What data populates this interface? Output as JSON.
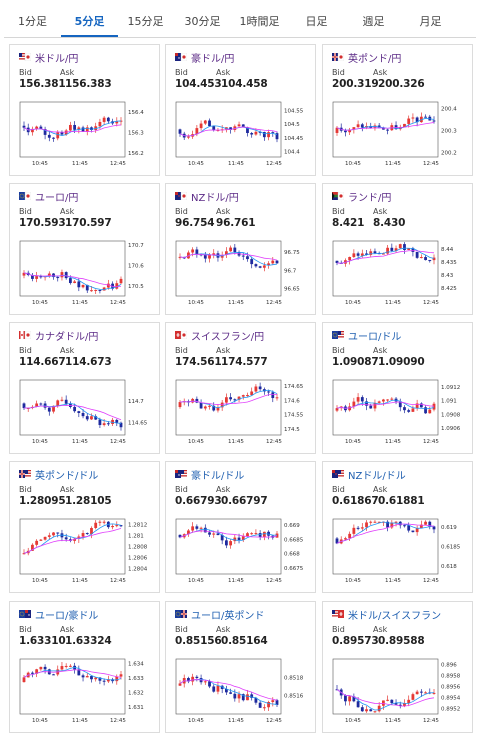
{
  "tabs": [
    {
      "label": "1分足",
      "active": false
    },
    {
      "label": "5分足",
      "active": true
    },
    {
      "label": "15分足",
      "active": false
    },
    {
      "label": "30分足",
      "active": false
    },
    {
      "label": "1時間足",
      "active": false
    },
    {
      "label": "日足",
      "active": false
    },
    {
      "label": "週足",
      "active": false
    },
    {
      "label": "月足",
      "active": false
    }
  ],
  "bid_label": "Bid",
  "ask_label": "Ask",
  "x_ticks": [
    "10:45",
    "11:45",
    "12:45"
  ],
  "colors": {
    "up": "#e53935",
    "down": "#1e2a9e",
    "ma_fast": "#2196f3",
    "ma_slow": "#e040fb"
  },
  "cards": [
    {
      "name": "米ドル/円",
      "flag": "us-jp",
      "bid": "156.381",
      "ask": "156.383",
      "yticks": [
        "156.4",
        "156.3",
        "156.2"
      ],
      "ylim": [
        156.18,
        156.45
      ],
      "seed": 1
    },
    {
      "name": "豪ドル/円",
      "flag": "au-jp",
      "bid": "104.453",
      "ask": "104.458",
      "yticks": [
        "104.55",
        "104.5",
        "104.45",
        "104.4"
      ],
      "ylim": [
        104.38,
        104.58
      ],
      "seed": 2
    },
    {
      "name": "英ポンド/円",
      "flag": "gb-jp",
      "bid": "200.319",
      "ask": "200.326",
      "yticks": [
        "200.4",
        "200.3",
        "200.2"
      ],
      "ylim": [
        200.18,
        200.43
      ],
      "seed": 3
    },
    {
      "name": "ユーロ/円",
      "flag": "eu-jp",
      "bid": "170.593",
      "ask": "170.597",
      "yticks": [
        "170.7",
        "170.6",
        "170.5"
      ],
      "ylim": [
        170.45,
        170.72
      ],
      "seed": 4
    },
    {
      "name": "NZドル/円",
      "flag": "nz-jp",
      "bid": "96.754",
      "ask": "96.761",
      "yticks": [
        "96.75",
        "96.7",
        "96.65"
      ],
      "ylim": [
        96.63,
        96.78
      ],
      "seed": 5
    },
    {
      "name": "ランド/円",
      "flag": "za-jp",
      "bid": "8.421",
      "ask": "8.430",
      "yticks": [
        "8.44",
        "8.435",
        "8.43",
        "8.425"
      ],
      "ylim": [
        8.422,
        8.443
      ],
      "seed": 6
    },
    {
      "name": "カナダドル/円",
      "flag": "ca-jp",
      "bid": "114.667",
      "ask": "114.673",
      "yticks": [
        "114.7",
        "114.65"
      ],
      "ylim": [
        114.62,
        114.75
      ],
      "seed": 7
    },
    {
      "name": "スイスフラン/円",
      "flag": "ch-jp",
      "bid": "174.561",
      "ask": "174.577",
      "yticks": [
        "174.65",
        "174.6",
        "174.55",
        "174.5"
      ],
      "ylim": [
        174.48,
        174.67
      ],
      "seed": 8
    },
    {
      "name": "ユーロ/ドル",
      "flag": "eu-us",
      "bid": "1.09087",
      "ask": "1.09090",
      "yticks": [
        "1.0912",
        "1.091",
        "1.0908",
        "1.0906"
      ],
      "ylim": [
        1.0905,
        1.0913
      ],
      "seed": 9
    },
    {
      "name": "英ポンド/ドル",
      "flag": "gb-us",
      "bid": "1.28095",
      "ask": "1.28105",
      "yticks": [
        "1.2812",
        "1.281",
        "1.2808",
        "1.2806",
        "1.2804"
      ],
      "ylim": [
        1.2803,
        1.2813
      ],
      "seed": 10
    },
    {
      "name": "豪ドル/ドル",
      "flag": "au-us",
      "bid": "0.66793",
      "ask": "0.66797",
      "yticks": [
        "0.669",
        "0.6685",
        "0.668",
        "0.6675"
      ],
      "ylim": [
        0.6673,
        0.6692
      ],
      "seed": 11
    },
    {
      "name": "NZドル/ドル",
      "flag": "nz-us",
      "bid": "0.61867",
      "ask": "0.61881",
      "yticks": [
        "0.619",
        "0.6185",
        "0.618"
      ],
      "ylim": [
        0.6178,
        0.6192
      ],
      "seed": 12
    },
    {
      "name": "ユーロ/豪ドル",
      "flag": "eu-au",
      "bid": "1.63310",
      "ask": "1.63324",
      "yticks": [
        "1.634",
        "1.633",
        "1.632",
        "1.631"
      ],
      "ylim": [
        1.6305,
        1.6343
      ],
      "seed": 13
    },
    {
      "name": "ユーロ/英ポンド",
      "flag": "eu-gb",
      "bid": "0.85156",
      "ask": "0.85164",
      "yticks": [
        "0.8518",
        "0.8516"
      ],
      "ylim": [
        0.8514,
        0.852
      ],
      "seed": 14
    },
    {
      "name": "米ドル/スイスフラン",
      "flag": "us-ch",
      "bid": "0.89573",
      "ask": "0.89588",
      "yticks": [
        "0.896",
        "0.8958",
        "0.8956",
        "0.8954",
        "0.8952"
      ],
      "ylim": [
        0.8951,
        0.8961
      ],
      "seed": 15
    }
  ]
}
